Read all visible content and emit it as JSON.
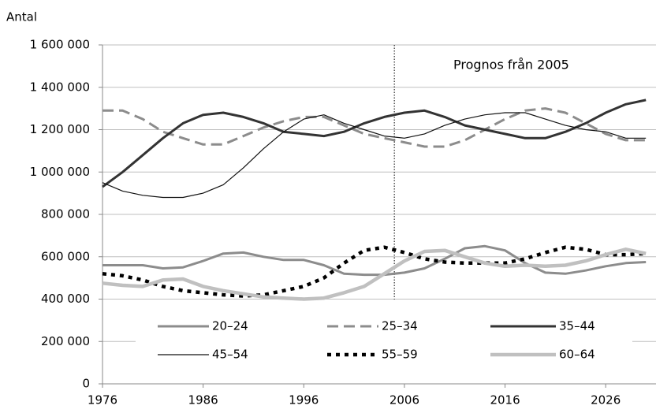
{
  "chart_data": {
    "type": "line",
    "y_label": "Antal",
    "annotation": "Prognos från 2005",
    "forecast_start": 2005,
    "x": [
      1976,
      1978,
      1980,
      1982,
      1984,
      1986,
      1988,
      1990,
      1992,
      1994,
      1996,
      1998,
      2000,
      2002,
      2004,
      2006,
      2008,
      2010,
      2012,
      2014,
      2016,
      2018,
      2020,
      2022,
      2024,
      2026,
      2028,
      2030
    ],
    "xlim": [
      1976,
      2031
    ],
    "xticks": [
      1976,
      1986,
      1996,
      2006,
      2016,
      2026
    ],
    "ylim": [
      0,
      1600000
    ],
    "yticks": [
      0,
      {
        "value": 200000,
        "label": "200 000"
      },
      {
        "value": 400000,
        "label": "400 000"
      },
      {
        "value": 600000,
        "label": "600 000"
      },
      {
        "value": 800000,
        "label": "800 000"
      },
      {
        "value": 1000000,
        "label": "1 000 000"
      },
      {
        "value": 1200000,
        "label": "1 200 000"
      },
      {
        "value": 1400000,
        "label": "1 400 000"
      },
      {
        "value": 1600000,
        "label": "1 600 000"
      }
    ],
    "grid": true,
    "series": [
      {
        "name": "20–24",
        "color": "#8c8c8c",
        "dash": "solid",
        "weight": "medium",
        "values": [
          560000,
          560000,
          560000,
          545000,
          550000,
          580000,
          615000,
          620000,
          600000,
          585000,
          585000,
          560000,
          520000,
          515000,
          515000,
          525000,
          545000,
          590000,
          640000,
          650000,
          630000,
          570000,
          525000,
          520000,
          535000,
          555000,
          570000,
          575000
        ]
      },
      {
        "name": "25–34",
        "color": "#8c8c8c",
        "dash": "dashed",
        "weight": "medium",
        "values": [
          1290000,
          1290000,
          1250000,
          1190000,
          1160000,
          1130000,
          1130000,
          1170000,
          1210000,
          1240000,
          1260000,
          1260000,
          1220000,
          1180000,
          1160000,
          1140000,
          1120000,
          1120000,
          1150000,
          1200000,
          1250000,
          1290000,
          1300000,
          1280000,
          1230000,
          1180000,
          1150000,
          1150000
        ]
      },
      {
        "name": "35–44",
        "color": "#333333",
        "dash": "solid",
        "weight": "medium",
        "values": [
          930000,
          1000000,
          1080000,
          1160000,
          1230000,
          1270000,
          1280000,
          1260000,
          1230000,
          1190000,
          1180000,
          1170000,
          1190000,
          1230000,
          1260000,
          1280000,
          1290000,
          1260000,
          1220000,
          1200000,
          1180000,
          1160000,
          1160000,
          1190000,
          1230000,
          1280000,
          1320000,
          1340000
        ]
      },
      {
        "name": "45–54",
        "color": "#111111",
        "dash": "solid",
        "weight": "thin",
        "values": [
          950000,
          910000,
          890000,
          880000,
          880000,
          900000,
          940000,
          1020000,
          1110000,
          1190000,
          1250000,
          1270000,
          1230000,
          1200000,
          1170000,
          1160000,
          1180000,
          1220000,
          1250000,
          1270000,
          1280000,
          1280000,
          1250000,
          1220000,
          1200000,
          1190000,
          1160000,
          1160000
        ]
      },
      {
        "name": "55–59",
        "color": "#000000",
        "dash": "dotted",
        "weight": "thick",
        "values": [
          520000,
          510000,
          490000,
          460000,
          440000,
          430000,
          420000,
          415000,
          420000,
          440000,
          460000,
          500000,
          570000,
          630000,
          645000,
          620000,
          590000,
          575000,
          570000,
          570000,
          570000,
          590000,
          620000,
          645000,
          635000,
          610000,
          610000,
          615000
        ]
      },
      {
        "name": "60–64",
        "color": "#c0c0c0",
        "dash": "solid",
        "weight": "thick",
        "values": [
          475000,
          465000,
          460000,
          490000,
          495000,
          460000,
          440000,
          425000,
          410000,
          405000,
          400000,
          405000,
          430000,
          460000,
          520000,
          580000,
          625000,
          630000,
          600000,
          570000,
          555000,
          560000,
          555000,
          560000,
          580000,
          610000,
          635000,
          615000
        ]
      }
    ]
  }
}
